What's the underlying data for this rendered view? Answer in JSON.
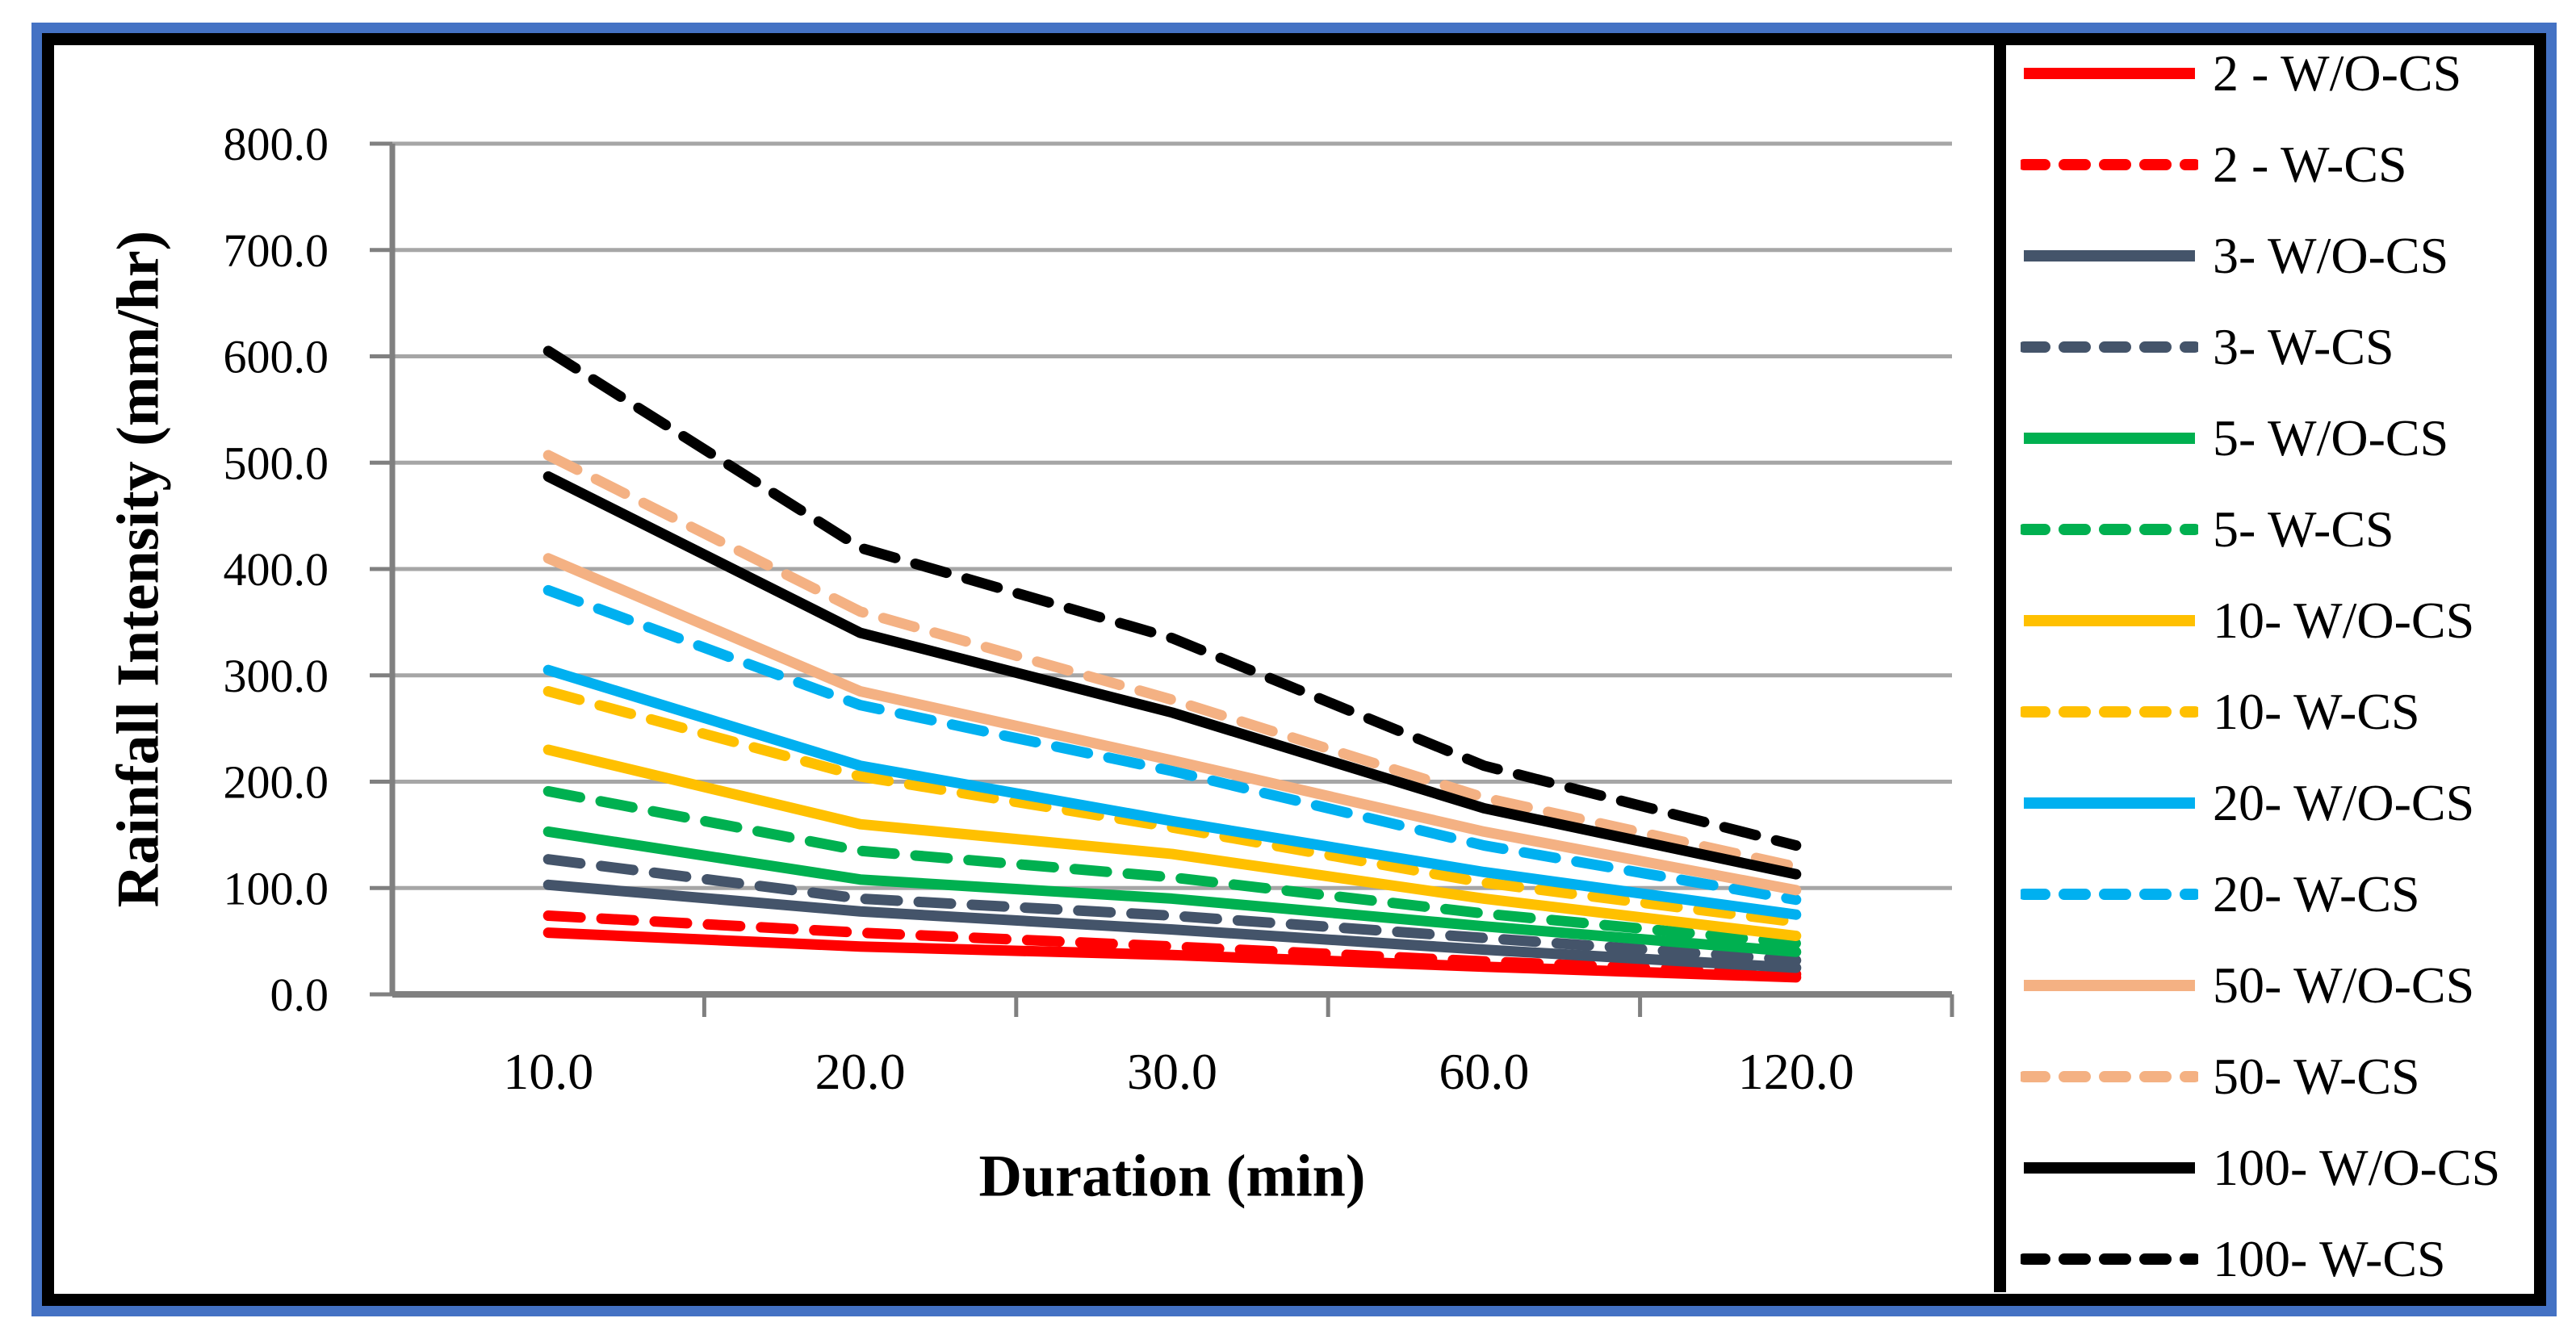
{
  "figure": {
    "outer_border_color": "#4472C4",
    "inner_border_color": "#000000",
    "gridline_color": "#A6A6A6",
    "axis_color": "#808080"
  },
  "chart_data": {
    "type": "line",
    "title": "",
    "xlabel": "Duration (min)",
    "ylabel": "Rainfall Intensity (mm/hr)",
    "x_categories": [
      "10.0",
      "20.0",
      "30.0",
      "60.0",
      "120.0"
    ],
    "y_tick_labels": [
      "0.0",
      "100.0",
      "200.0",
      "300.0",
      "400.0",
      "500.0",
      "600.0",
      "700.0",
      "800.0"
    ],
    "ylim": [
      0,
      800
    ],
    "grid": "horizontal",
    "legend_position": "right",
    "series": [
      {
        "name": "2 - W/O-CS",
        "color": "#FF0000",
        "dashed": false,
        "values": [
          58,
          45,
          37,
          26,
          16
        ]
      },
      {
        "name": "2 - W-CS",
        "color": "#FF0000",
        "dashed": true,
        "values": [
          74,
          58,
          45,
          31,
          19
        ]
      },
      {
        "name": "3- W/O-CS",
        "color": "#44546A",
        "dashed": false,
        "values": [
          103,
          78,
          61,
          42,
          25
        ]
      },
      {
        "name": "3- W-CS",
        "color": "#44546A",
        "dashed": true,
        "values": [
          127,
          90,
          74,
          53,
          32
        ]
      },
      {
        "name": "5- W/O-CS",
        "color": "#00B050",
        "dashed": false,
        "values": [
          153,
          108,
          90,
          64,
          40
        ]
      },
      {
        "name": "5- W-CS",
        "color": "#00B050",
        "dashed": true,
        "values": [
          191,
          135,
          110,
          76,
          48
        ]
      },
      {
        "name": "10- W/O-CS",
        "color": "#FFC000",
        "dashed": false,
        "values": [
          230,
          160,
          132,
          90,
          55
        ]
      },
      {
        "name": "10- W-CS",
        "color": "#FFC000",
        "dashed": true,
        "values": [
          285,
          205,
          157,
          105,
          68
        ]
      },
      {
        "name": "20- W/O-CS",
        "color": "#00B0F0",
        "dashed": false,
        "values": [
          305,
          215,
          163,
          115,
          75
        ]
      },
      {
        "name": "20- W-CS",
        "color": "#00B0F0",
        "dashed": true,
        "values": [
          380,
          272,
          210,
          140,
          89
        ]
      },
      {
        "name": "50- W/O-CS",
        "color": "#F4B183",
        "dashed": false,
        "values": [
          410,
          285,
          220,
          153,
          98
        ]
      },
      {
        "name": "50- W-CS",
        "color": "#F4B183",
        "dashed": true,
        "values": [
          507,
          360,
          277,
          185,
          120
        ]
      },
      {
        "name": "100- W/O-CS",
        "color": "#000000",
        "dashed": false,
        "values": [
          487,
          340,
          265,
          175,
          113
        ]
      },
      {
        "name": "100- W-CS",
        "color": "#000000",
        "dashed": true,
        "values": [
          605,
          420,
          335,
          215,
          140
        ]
      }
    ]
  }
}
